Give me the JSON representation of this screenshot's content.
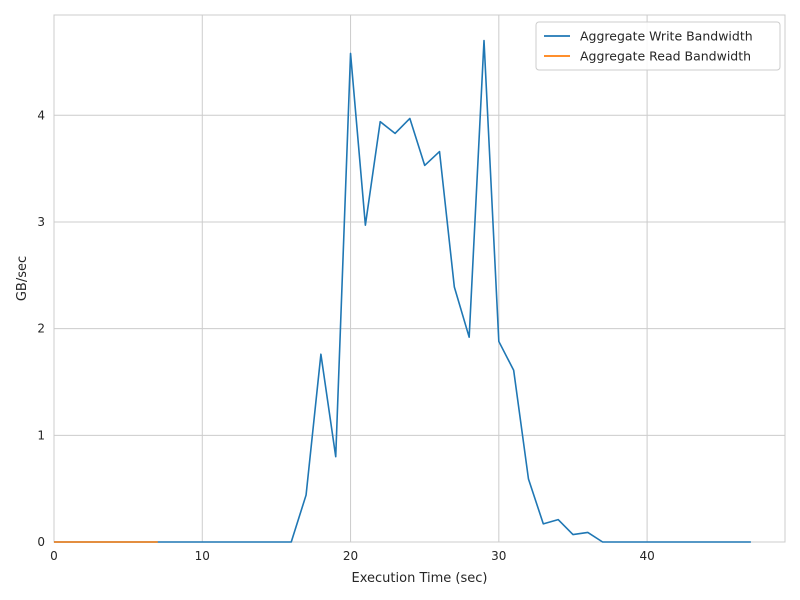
{
  "chart_data": {
    "type": "line",
    "xlabel": "Execution Time (sec)",
    "ylabel": "GB/sec",
    "xlim": [
      0,
      49.3
    ],
    "ylim": [
      0,
      4.94
    ],
    "xticks": [
      0,
      10,
      20,
      30,
      40
    ],
    "yticks": [
      0,
      1,
      2,
      3,
      4
    ],
    "grid": true,
    "legend_position": "top-right",
    "series": [
      {
        "name": "Aggregate Write Bandwidth",
        "color": "#1f77b4",
        "x": [
          0,
          1,
          2,
          3,
          4,
          5,
          6,
          7,
          8,
          9,
          10,
          11,
          12,
          13,
          14,
          15,
          16,
          17,
          18,
          19,
          20,
          21,
          22,
          23,
          24,
          25,
          26,
          27,
          28,
          29,
          30,
          31,
          32,
          33,
          34,
          35,
          36,
          37,
          38,
          39,
          40,
          41,
          42,
          43,
          44,
          45,
          46,
          47
        ],
        "y": [
          0,
          0,
          0,
          0,
          0,
          0,
          0,
          0,
          0,
          0,
          0,
          0,
          0,
          0,
          0,
          0,
          0,
          0.44,
          1.76,
          0.8,
          4.58,
          2.97,
          3.94,
          3.83,
          3.97,
          3.53,
          3.66,
          2.39,
          1.92,
          4.7,
          1.88,
          1.61,
          0.59,
          0.17,
          0.21,
          0.07,
          0.09,
          0,
          0,
          0,
          0,
          0,
          0,
          0,
          0,
          0,
          0,
          0
        ]
      },
      {
        "name": "Aggregate Read Bandwidth",
        "color": "#ff7f0e",
        "x": [
          0,
          1,
          2,
          3,
          4,
          5,
          6,
          7
        ],
        "y": [
          0,
          0,
          0,
          0,
          0,
          0,
          0,
          0
        ]
      }
    ]
  }
}
